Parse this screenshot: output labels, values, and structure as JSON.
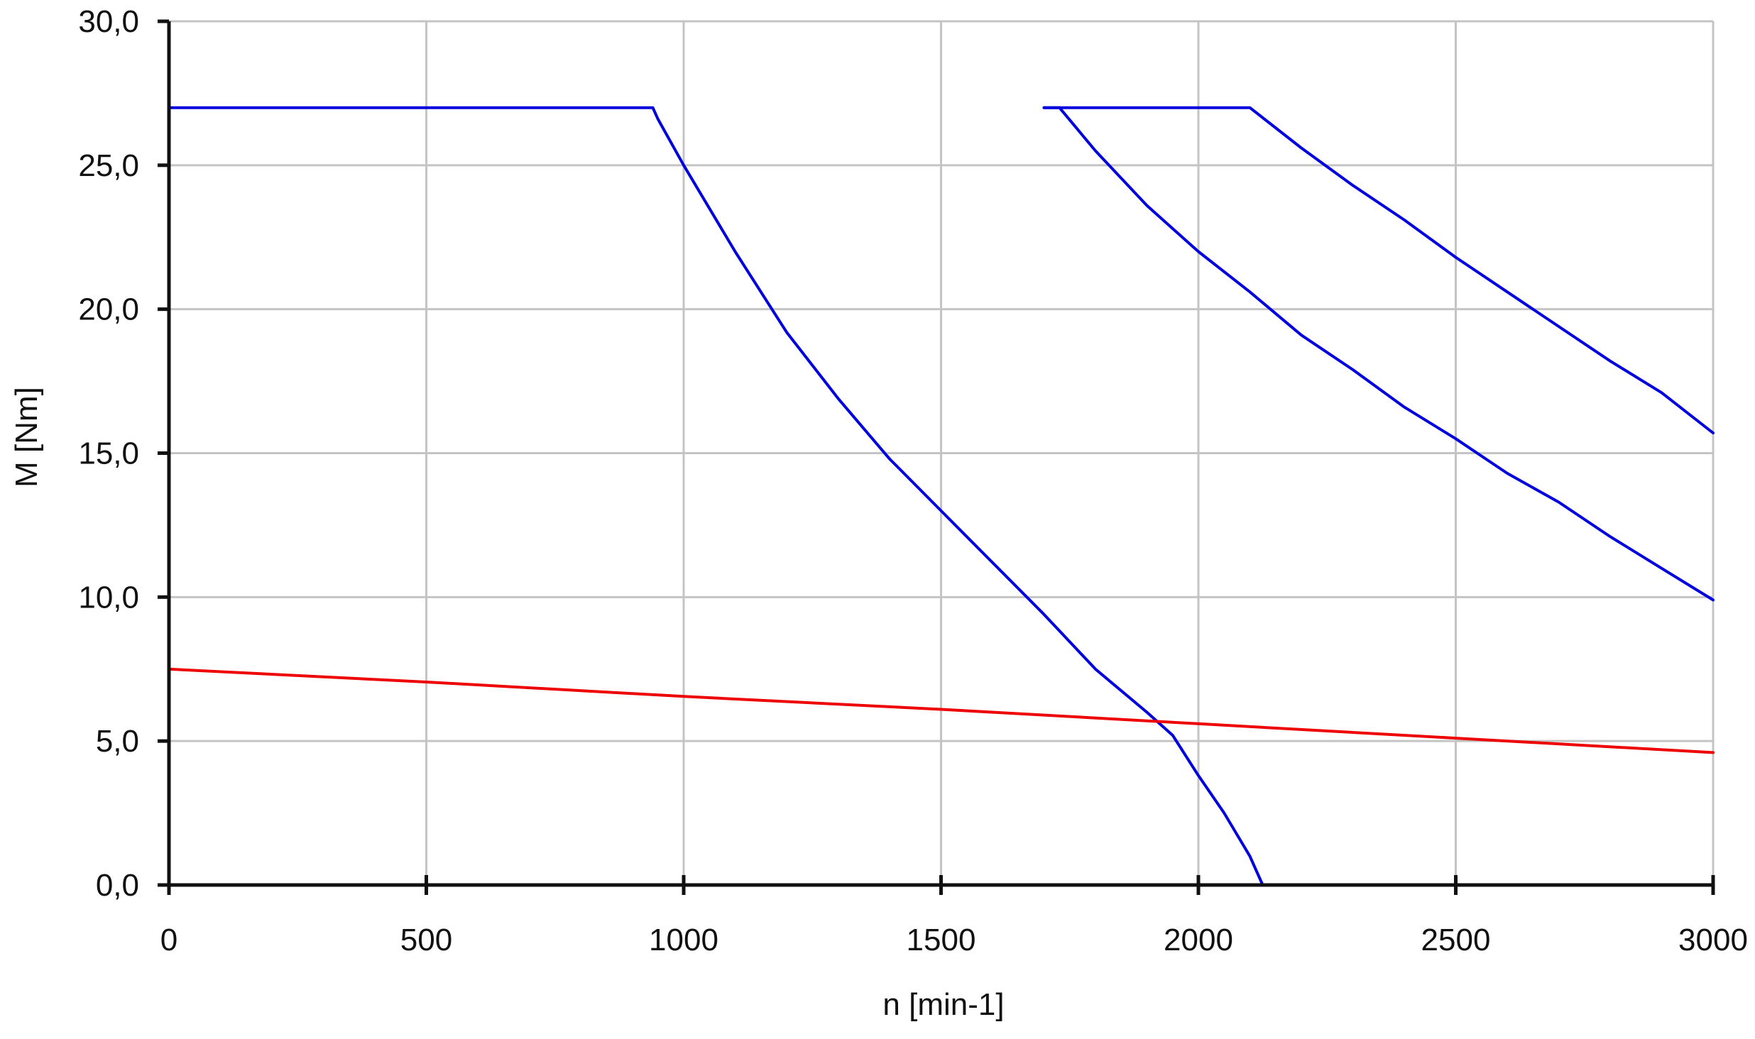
{
  "chart_data": {
    "type": "line",
    "title": "",
    "xlabel": "n [min-1]",
    "ylabel": "M [Nm]",
    "xlim": [
      0,
      3000
    ],
    "ylim": [
      0,
      30
    ],
    "grid": true,
    "xticks": [
      0,
      500,
      1000,
      1500,
      2000,
      2500,
      3000
    ],
    "yticks": [
      0,
      5,
      10,
      15,
      20,
      25,
      30
    ],
    "xtick_labels": [
      "0",
      "500",
      "1000",
      "1500",
      "2000",
      "2500",
      "3000"
    ],
    "ytick_labels": [
      "0,0",
      "5,0",
      "10,0",
      "15,0",
      "20,0",
      "25,0",
      "30,0"
    ],
    "series": [
      {
        "color": "#0000dd",
        "points": [
          [
            0,
            27.0
          ],
          [
            940,
            27.0
          ],
          [
            950,
            26.6
          ],
          [
            1000,
            25.0
          ],
          [
            1100,
            22.0
          ],
          [
            1200,
            19.2
          ],
          [
            1300,
            16.9
          ],
          [
            1400,
            14.8
          ],
          [
            1500,
            13.0
          ],
          [
            1600,
            11.2
          ],
          [
            1700,
            9.4
          ],
          [
            1800,
            7.5
          ],
          [
            1900,
            6.0
          ],
          [
            1950,
            5.2
          ],
          [
            2000,
            3.8
          ],
          [
            2050,
            2.5
          ],
          [
            2100,
            1.0
          ],
          [
            2125,
            0.0
          ]
        ]
      },
      {
        "color": "#0000dd",
        "points": [
          [
            1700,
            27.0
          ],
          [
            1730,
            27.0
          ],
          [
            1800,
            25.5
          ],
          [
            1900,
            23.6
          ],
          [
            2000,
            22.0
          ],
          [
            2100,
            20.6
          ],
          [
            2200,
            19.1
          ],
          [
            2300,
            17.9
          ],
          [
            2400,
            16.6
          ],
          [
            2500,
            15.5
          ],
          [
            2600,
            14.3
          ],
          [
            2700,
            13.3
          ],
          [
            2800,
            12.1
          ],
          [
            2900,
            11.0
          ],
          [
            3000,
            9.9
          ]
        ]
      },
      {
        "color": "#0000dd",
        "points": [
          [
            1700,
            27.0
          ],
          [
            2100,
            27.0
          ],
          [
            2200,
            25.6
          ],
          [
            2300,
            24.3
          ],
          [
            2400,
            23.1
          ],
          [
            2500,
            21.8
          ],
          [
            2600,
            20.6
          ],
          [
            2700,
            19.4
          ],
          [
            2800,
            18.2
          ],
          [
            2900,
            17.1
          ],
          [
            3000,
            15.7
          ]
        ]
      },
      {
        "color": "#ee0000",
        "points": [
          [
            0,
            7.5
          ],
          [
            500,
            7.05
          ],
          [
            1000,
            6.55
          ],
          [
            1500,
            6.1
          ],
          [
            2000,
            5.6
          ],
          [
            2500,
            5.1
          ],
          [
            3000,
            4.6
          ]
        ]
      }
    ]
  }
}
